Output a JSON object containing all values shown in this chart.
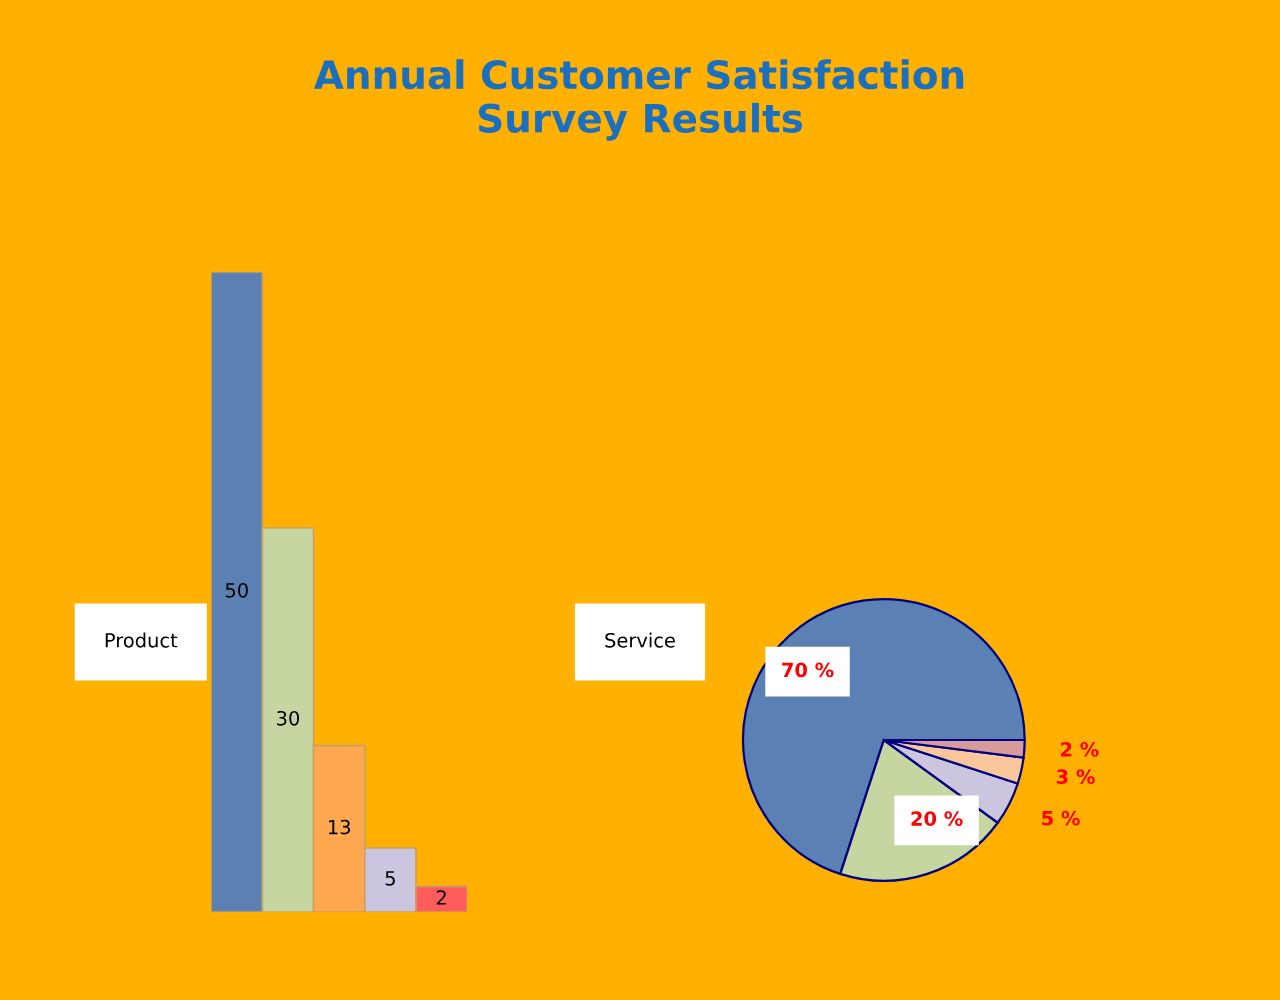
{
  "chart_data": [
    {
      "type": "bar",
      "title": "Annual Customer Satisfaction\nSurvey Results",
      "subtitle": "Product",
      "categories": [
        null,
        null,
        null,
        null,
        null
      ],
      "values": [
        50,
        30,
        13,
        5,
        2
      ],
      "colors": [
        "#5a80b4",
        "#c5d6a0",
        "#ffa850",
        "#cbc5e0",
        "#ff5c5c"
      ],
      "data_labels": true
    },
    {
      "type": "pie",
      "title": "Service",
      "categories": [
        null,
        null,
        null,
        null,
        null
      ],
      "values": [
        70,
        20,
        5,
        3,
        2
      ],
      "colors": [
        "#5a80b4",
        "#c5d6a0",
        "#cbc5e0",
        "#f9c79b",
        "#d99a9a"
      ],
      "value_labels": [
        "70 %",
        "20 %",
        "5 %",
        "3 %",
        "2 %"
      ]
    }
  ]
}
